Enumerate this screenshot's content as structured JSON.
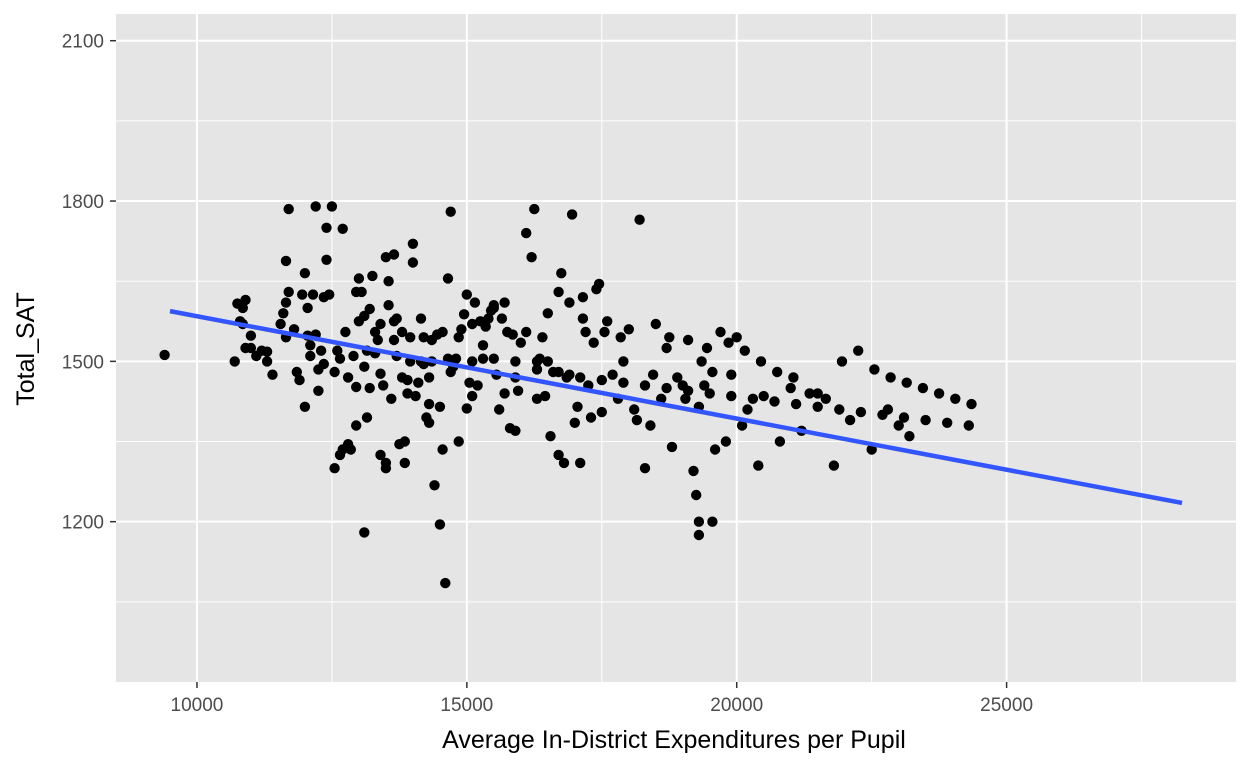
{
  "chart_data": {
    "type": "scatter",
    "title": "",
    "xlabel": "Average In-District Expenditures per Pupil",
    "ylabel": "Total_SAT",
    "xlim": [
      8500,
      29250
    ],
    "ylim": [
      900,
      2150
    ],
    "x_ticks": [
      10000,
      15000,
      20000,
      25000
    ],
    "y_ticks": [
      1200,
      1500,
      1800,
      2100
    ],
    "x_minor": [
      12500,
      17500,
      22500,
      27500
    ],
    "y_minor": [
      1050,
      1350,
      1650,
      1950
    ],
    "grid": true,
    "legend": "none",
    "colors": {
      "panel": "#e5e5e5",
      "grid": "#ffffff",
      "points": "#000000",
      "trend": "#3355ff"
    },
    "trend_line": {
      "x": [
        9500,
        28250
      ],
      "y": [
        1594,
        1235
      ]
    },
    "points": [
      [
        9400,
        1512
      ],
      [
        10700,
        1500
      ],
      [
        10750,
        1608
      ],
      [
        10800,
        1575
      ],
      [
        10850,
        1570
      ],
      [
        10900,
        1615
      ],
      [
        10900,
        1525
      ],
      [
        11000,
        1548
      ],
      [
        11000,
        1525
      ],
      [
        11100,
        1510
      ],
      [
        11200,
        1520
      ],
      [
        11300,
        1518
      ],
      [
        11400,
        1475
      ],
      [
        11550,
        1570
      ],
      [
        11600,
        1590
      ],
      [
        11650,
        1545
      ],
      [
        11650,
        1688
      ],
      [
        11700,
        1785
      ],
      [
        11700,
        1630
      ],
      [
        11800,
        1560
      ],
      [
        11850,
        1480
      ],
      [
        11900,
        1465
      ],
      [
        11950,
        1625
      ],
      [
        12000,
        1415
      ],
      [
        12000,
        1665
      ],
      [
        12050,
        1548
      ],
      [
        12100,
        1510
      ],
      [
        12100,
        1530
      ],
      [
        12150,
        1625
      ],
      [
        12200,
        1790
      ],
      [
        12200,
        1550
      ],
      [
        12250,
        1485
      ],
      [
        12250,
        1445
      ],
      [
        12300,
        1520
      ],
      [
        12350,
        1620
      ],
      [
        12400,
        1750
      ],
      [
        12400,
        1690
      ],
      [
        12450,
        1625
      ],
      [
        12500,
        1790
      ],
      [
        12550,
        1480
      ],
      [
        12550,
        1300
      ],
      [
        12600,
        1520
      ],
      [
        12650,
        1505
      ],
      [
        12700,
        1748
      ],
      [
        12750,
        1555
      ],
      [
        12800,
        1345
      ],
      [
        12800,
        1470
      ],
      [
        12850,
        1335
      ],
      [
        12900,
        1510
      ],
      [
        12950,
        1380
      ],
      [
        12950,
        1452
      ],
      [
        13000,
        1655
      ],
      [
        13000,
        1575
      ],
      [
        13050,
        1630
      ],
      [
        13100,
        1585
      ],
      [
        13100,
        1490
      ],
      [
        13150,
        1520
      ],
      [
        13200,
        1598
      ],
      [
        13200,
        1450
      ],
      [
        13250,
        1660
      ],
      [
        13300,
        1555
      ],
      [
        13300,
        1515
      ],
      [
        13350,
        1540
      ],
      [
        13400,
        1477
      ],
      [
        13400,
        1570
      ],
      [
        13450,
        1455
      ],
      [
        13500,
        1310
      ],
      [
        13500,
        1695
      ],
      [
        13550,
        1605
      ],
      [
        13550,
        1650
      ],
      [
        13600,
        1430
      ],
      [
        13650,
        1700
      ],
      [
        13650,
        1540
      ],
      [
        13700,
        1580
      ],
      [
        13700,
        1510
      ],
      [
        13750,
        1345
      ],
      [
        13800,
        1555
      ],
      [
        13800,
        1470
      ],
      [
        13850,
        1310
      ],
      [
        13850,
        1350
      ],
      [
        13900,
        1465
      ],
      [
        13950,
        1500
      ],
      [
        14000,
        1685
      ],
      [
        14000,
        1720
      ],
      [
        14050,
        1435
      ],
      [
        14100,
        1460
      ],
      [
        14150,
        1500
      ],
      [
        14200,
        1495
      ],
      [
        14200,
        1545
      ],
      [
        14250,
        1395
      ],
      [
        14300,
        1385
      ],
      [
        14300,
        1420
      ],
      [
        14350,
        1540
      ],
      [
        14400,
        1268
      ],
      [
        14450,
        1550
      ],
      [
        14500,
        1195
      ],
      [
        14500,
        1415
      ],
      [
        14550,
        1555
      ],
      [
        14550,
        1335
      ],
      [
        14600,
        1085
      ],
      [
        14650,
        1655
      ],
      [
        14700,
        1780
      ],
      [
        14700,
        1480
      ],
      [
        14750,
        1490
      ],
      [
        14800,
        1505
      ],
      [
        14850,
        1545
      ],
      [
        14900,
        1560
      ],
      [
        14950,
        1588
      ],
      [
        15000,
        1625
      ],
      [
        15000,
        1412
      ],
      [
        15050,
        1460
      ],
      [
        15100,
        1570
      ],
      [
        15150,
        1610
      ],
      [
        15200,
        1455
      ],
      [
        15250,
        1575
      ],
      [
        15300,
        1530
      ],
      [
        15350,
        1565
      ],
      [
        15400,
        1580
      ],
      [
        15450,
        1595
      ],
      [
        15500,
        1605
      ],
      [
        15550,
        1475
      ],
      [
        15600,
        1410
      ],
      [
        15650,
        1580
      ],
      [
        15700,
        1440
      ],
      [
        15750,
        1555
      ],
      [
        15800,
        1375
      ],
      [
        15850,
        1550
      ],
      [
        15900,
        1500
      ],
      [
        15950,
        1445
      ],
      [
        16000,
        1535
      ],
      [
        16100,
        1740
      ],
      [
        16200,
        1695
      ],
      [
        16250,
        1785
      ],
      [
        16300,
        1430
      ],
      [
        16350,
        1505
      ],
      [
        16400,
        1545
      ],
      [
        16450,
        1435
      ],
      [
        16500,
        1590
      ],
      [
        16550,
        1360
      ],
      [
        16600,
        1480
      ],
      [
        16700,
        1325
      ],
      [
        16750,
        1665
      ],
      [
        16800,
        1310
      ],
      [
        16850,
        1470
      ],
      [
        16900,
        1610
      ],
      [
        16950,
        1775
      ],
      [
        17000,
        1385
      ],
      [
        17050,
        1415
      ],
      [
        17100,
        1310
      ],
      [
        17150,
        1620
      ],
      [
        17200,
        1555
      ],
      [
        17250,
        1455
      ],
      [
        17300,
        1395
      ],
      [
        17350,
        1535
      ],
      [
        17400,
        1635
      ],
      [
        17500,
        1405
      ],
      [
        17550,
        1555
      ],
      [
        17600,
        1575
      ],
      [
        17700,
        1475
      ],
      [
        17800,
        1430
      ],
      [
        17900,
        1500
      ],
      [
        18000,
        1560
      ],
      [
        18100,
        1410
      ],
      [
        18200,
        1765
      ],
      [
        18300,
        1300
      ],
      [
        18400,
        1380
      ],
      [
        18500,
        1570
      ],
      [
        18600,
        1430
      ],
      [
        18700,
        1525
      ],
      [
        18800,
        1340
      ],
      [
        18900,
        1470
      ],
      [
        19000,
        1455
      ],
      [
        19100,
        1540
      ],
      [
        19200,
        1295
      ],
      [
        19250,
        1250
      ],
      [
        19300,
        1415
      ],
      [
        19300,
        1200
      ],
      [
        19300,
        1175
      ],
      [
        19400,
        1455
      ],
      [
        19450,
        1525
      ],
      [
        19550,
        1200
      ],
      [
        19600,
        1335
      ],
      [
        19700,
        1555
      ],
      [
        19800,
        1350
      ],
      [
        19900,
        1475
      ],
      [
        20000,
        1545
      ],
      [
        20100,
        1380
      ],
      [
        20200,
        1410
      ],
      [
        20400,
        1305
      ],
      [
        20500,
        1435
      ],
      [
        20800,
        1350
      ],
      [
        21000,
        1450
      ],
      [
        21200,
        1370
      ],
      [
        21500,
        1440
      ],
      [
        21800,
        1305
      ],
      [
        22100,
        1390
      ],
      [
        22500,
        1335
      ],
      [
        22800,
        1410
      ],
      [
        23000,
        1380
      ],
      [
        23200,
        1360
      ],
      [
        10850,
        1600
      ],
      [
        11300,
        1500
      ],
      [
        11650,
        1610
      ],
      [
        12050,
        1600
      ],
      [
        12350,
        1495
      ],
      [
        12650,
        1325
      ],
      [
        12950,
        1630
      ],
      [
        13150,
        1395
      ],
      [
        13400,
        1325
      ],
      [
        13650,
        1575
      ],
      [
        13950,
        1545
      ],
      [
        14150,
        1580
      ],
      [
        14350,
        1500
      ],
      [
        14650,
        1505
      ],
      [
        14850,
        1350
      ],
      [
        15100,
        1500
      ],
      [
        15300,
        1505
      ],
      [
        15500,
        1600
      ],
      [
        15700,
        1610
      ],
      [
        15900,
        1370
      ],
      [
        16100,
        1555
      ],
      [
        16300,
        1500
      ],
      [
        16500,
        1500
      ],
      [
        16700,
        1630
      ],
      [
        16900,
        1475
      ],
      [
        17150,
        1580
      ],
      [
        17450,
        1645
      ],
      [
        17850,
        1545
      ],
      [
        18150,
        1390
      ],
      [
        18450,
        1475
      ],
      [
        18750,
        1545
      ],
      [
        19050,
        1430
      ],
      [
        19350,
        1500
      ],
      [
        19550,
        1480
      ],
      [
        19850,
        1535
      ],
      [
        20150,
        1520
      ],
      [
        20450,
        1500
      ],
      [
        20750,
        1480
      ],
      [
        21050,
        1470
      ],
      [
        21350,
        1440
      ],
      [
        21650,
        1430
      ],
      [
        21950,
        1500
      ],
      [
        22250,
        1520
      ],
      [
        22550,
        1485
      ],
      [
        22850,
        1470
      ],
      [
        23150,
        1460
      ],
      [
        23450,
        1450
      ],
      [
        23750,
        1440
      ],
      [
        24050,
        1430
      ],
      [
        24350,
        1420
      ],
      [
        12700,
        1335
      ],
      [
        13100,
        1180
      ],
      [
        13500,
        1300
      ],
      [
        13900,
        1440
      ],
      [
        14300,
        1470
      ],
      [
        14700,
        1500
      ],
      [
        15100,
        1435
      ],
      [
        15500,
        1505
      ],
      [
        15900,
        1470
      ],
      [
        16300,
        1485
      ],
      [
        16700,
        1480
      ],
      [
        17100,
        1470
      ],
      [
        17500,
        1465
      ],
      [
        17900,
        1460
      ],
      [
        18300,
        1455
      ],
      [
        18700,
        1450
      ],
      [
        19100,
        1445
      ],
      [
        19500,
        1440
      ],
      [
        19900,
        1435
      ],
      [
        20300,
        1430
      ],
      [
        20700,
        1425
      ],
      [
        21100,
        1420
      ],
      [
        21500,
        1415
      ],
      [
        21900,
        1410
      ],
      [
        22300,
        1405
      ],
      [
        22700,
        1400
      ],
      [
        23100,
        1395
      ],
      [
        23500,
        1390
      ],
      [
        23900,
        1385
      ],
      [
        24300,
        1380
      ]
    ]
  }
}
